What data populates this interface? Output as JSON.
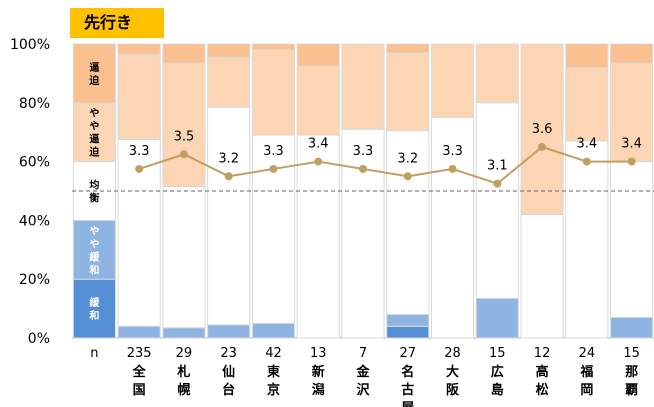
{
  "title": "先行き",
  "legend": {
    "tight": "逼迫",
    "slightly_tight": "やや逼迫",
    "balanced": "均衡",
    "slightly_loose": "やや緩和",
    "loose": "緩和"
  },
  "colors": {
    "tight": "#fac090",
    "slightly_tight": "#fcd5b5",
    "balanced": "#ffffff",
    "slightly_loose": "#8eb4e3",
    "loose": "#558ed5",
    "line": "#c0a060",
    "title_bg": "#ffc000",
    "dashed": "#808080",
    "bar_border": "#d9d9d9"
  },
  "chart_data": {
    "type": "bar",
    "stacked": true,
    "ylim": [
      0,
      100
    ],
    "yticks": [
      "0%",
      "20%",
      "40%",
      "60%",
      "80%",
      "100%"
    ],
    "n_label": "n",
    "reference_line": 50,
    "categories": [
      {
        "n": "235",
        "name": "全国"
      },
      {
        "n": "29",
        "name": "札幌"
      },
      {
        "n": "23",
        "name": "仙台"
      },
      {
        "n": "42",
        "name": "東京"
      },
      {
        "n": "13",
        "name": "新潟"
      },
      {
        "n": "7",
        "name": "金沢"
      },
      {
        "n": "27",
        "name": "名古屋"
      },
      {
        "n": "28",
        "name": "大阪"
      },
      {
        "n": "15",
        "name": "広島"
      },
      {
        "n": "12",
        "name": "高松"
      },
      {
        "n": "24",
        "name": "福岡"
      },
      {
        "n": "15",
        "name": "那覇"
      }
    ],
    "series": [
      {
        "key": "loose",
        "values": [
          0,
          0,
          0,
          0,
          0,
          0,
          4,
          0,
          0,
          0,
          0,
          0
        ]
      },
      {
        "key": "slightly_loose",
        "values": [
          4,
          3.5,
          4.5,
          5,
          0,
          0,
          4,
          0,
          13.5,
          0,
          0,
          7
        ]
      },
      {
        "key": "balanced",
        "values": [
          63.5,
          48,
          74,
          64,
          69,
          71,
          62.5,
          75,
          66.5,
          42,
          67,
          53
        ]
      },
      {
        "key": "slightly_tight",
        "values": [
          29,
          42,
          17,
          29,
          23.5,
          29,
          26.5,
          25,
          20,
          58,
          25,
          33.5
        ]
      },
      {
        "key": "tight",
        "values": [
          3.5,
          6.5,
          4.5,
          2,
          7.5,
          0,
          3,
          0,
          0,
          0,
          8,
          6.5
        ]
      }
    ],
    "di_values": [
      3.3,
      3.5,
      3.2,
      3.3,
      3.4,
      3.3,
      3.2,
      3.3,
      3.1,
      3.6,
      3.4,
      3.4
    ],
    "di_labels": [
      "3.3",
      "3.5",
      "3.2",
      "3.3",
      "3.4",
      "3.3",
      "3.2",
      "3.3",
      "3.1",
      "3.6",
      "3.4",
      "3.4"
    ],
    "di_range": [
      1,
      5
    ],
    "legend_col": [
      {
        "key": "loose",
        "value": 20
      },
      {
        "key": "slightly_loose",
        "value": 20
      },
      {
        "key": "balanced",
        "value": 20
      },
      {
        "key": "slightly_tight",
        "value": 20
      },
      {
        "key": "tight",
        "value": 20
      }
    ]
  }
}
